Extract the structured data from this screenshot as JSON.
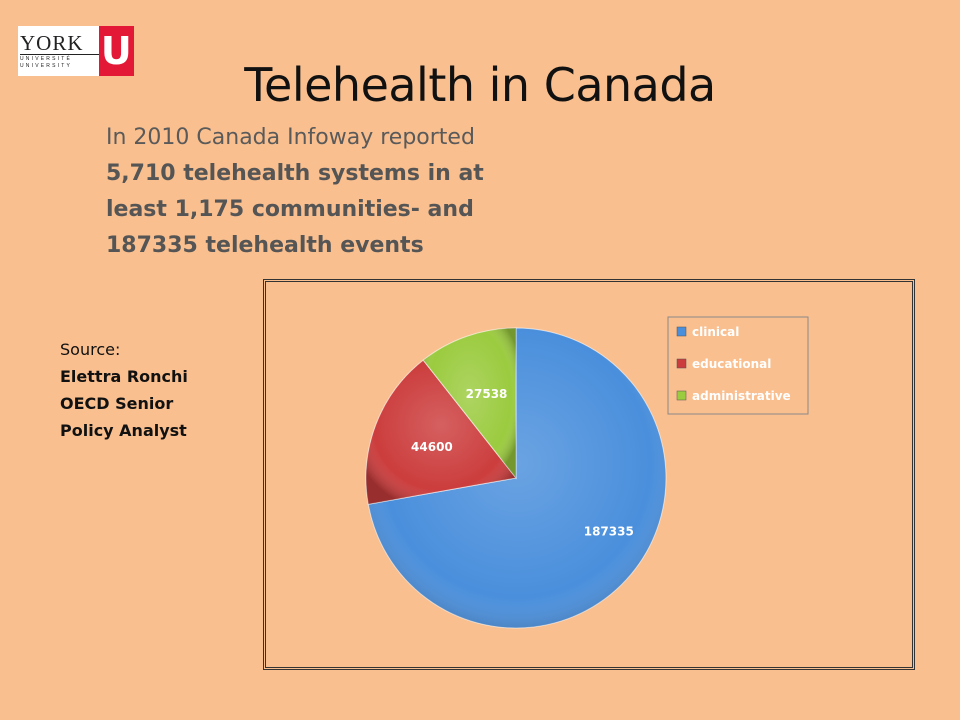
{
  "title": "Telehealth in Canada",
  "intro": {
    "line1": "In 2010 Canada Infoway reported",
    "line2": "5,710 telehealth systems in at",
    "line3": "least 1,175 communities- and",
    "line4": "187335 telehealth events"
  },
  "source": {
    "label": "Source:",
    "name": "Elettra Ronchi",
    "role1": "OECD Senior",
    "role2": "Policy Analyst"
  },
  "logo": {
    "word": "YORK",
    "sub": "UNIVERSITÉ UNIVERSITY",
    "mark": "U"
  },
  "colors": {
    "background": "#f9bf8f",
    "clinical": "#4a8fdc",
    "educational": "#cc3d3d",
    "administrative": "#9bcb3f"
  },
  "chart_data": {
    "type": "pie",
    "categories": [
      "clinical",
      "educational",
      "administrative"
    ],
    "values": [
      187335,
      44600,
      27538
    ],
    "legend_position": "top-right",
    "data_labels": [
      "187335",
      "44600",
      "27538"
    ]
  }
}
